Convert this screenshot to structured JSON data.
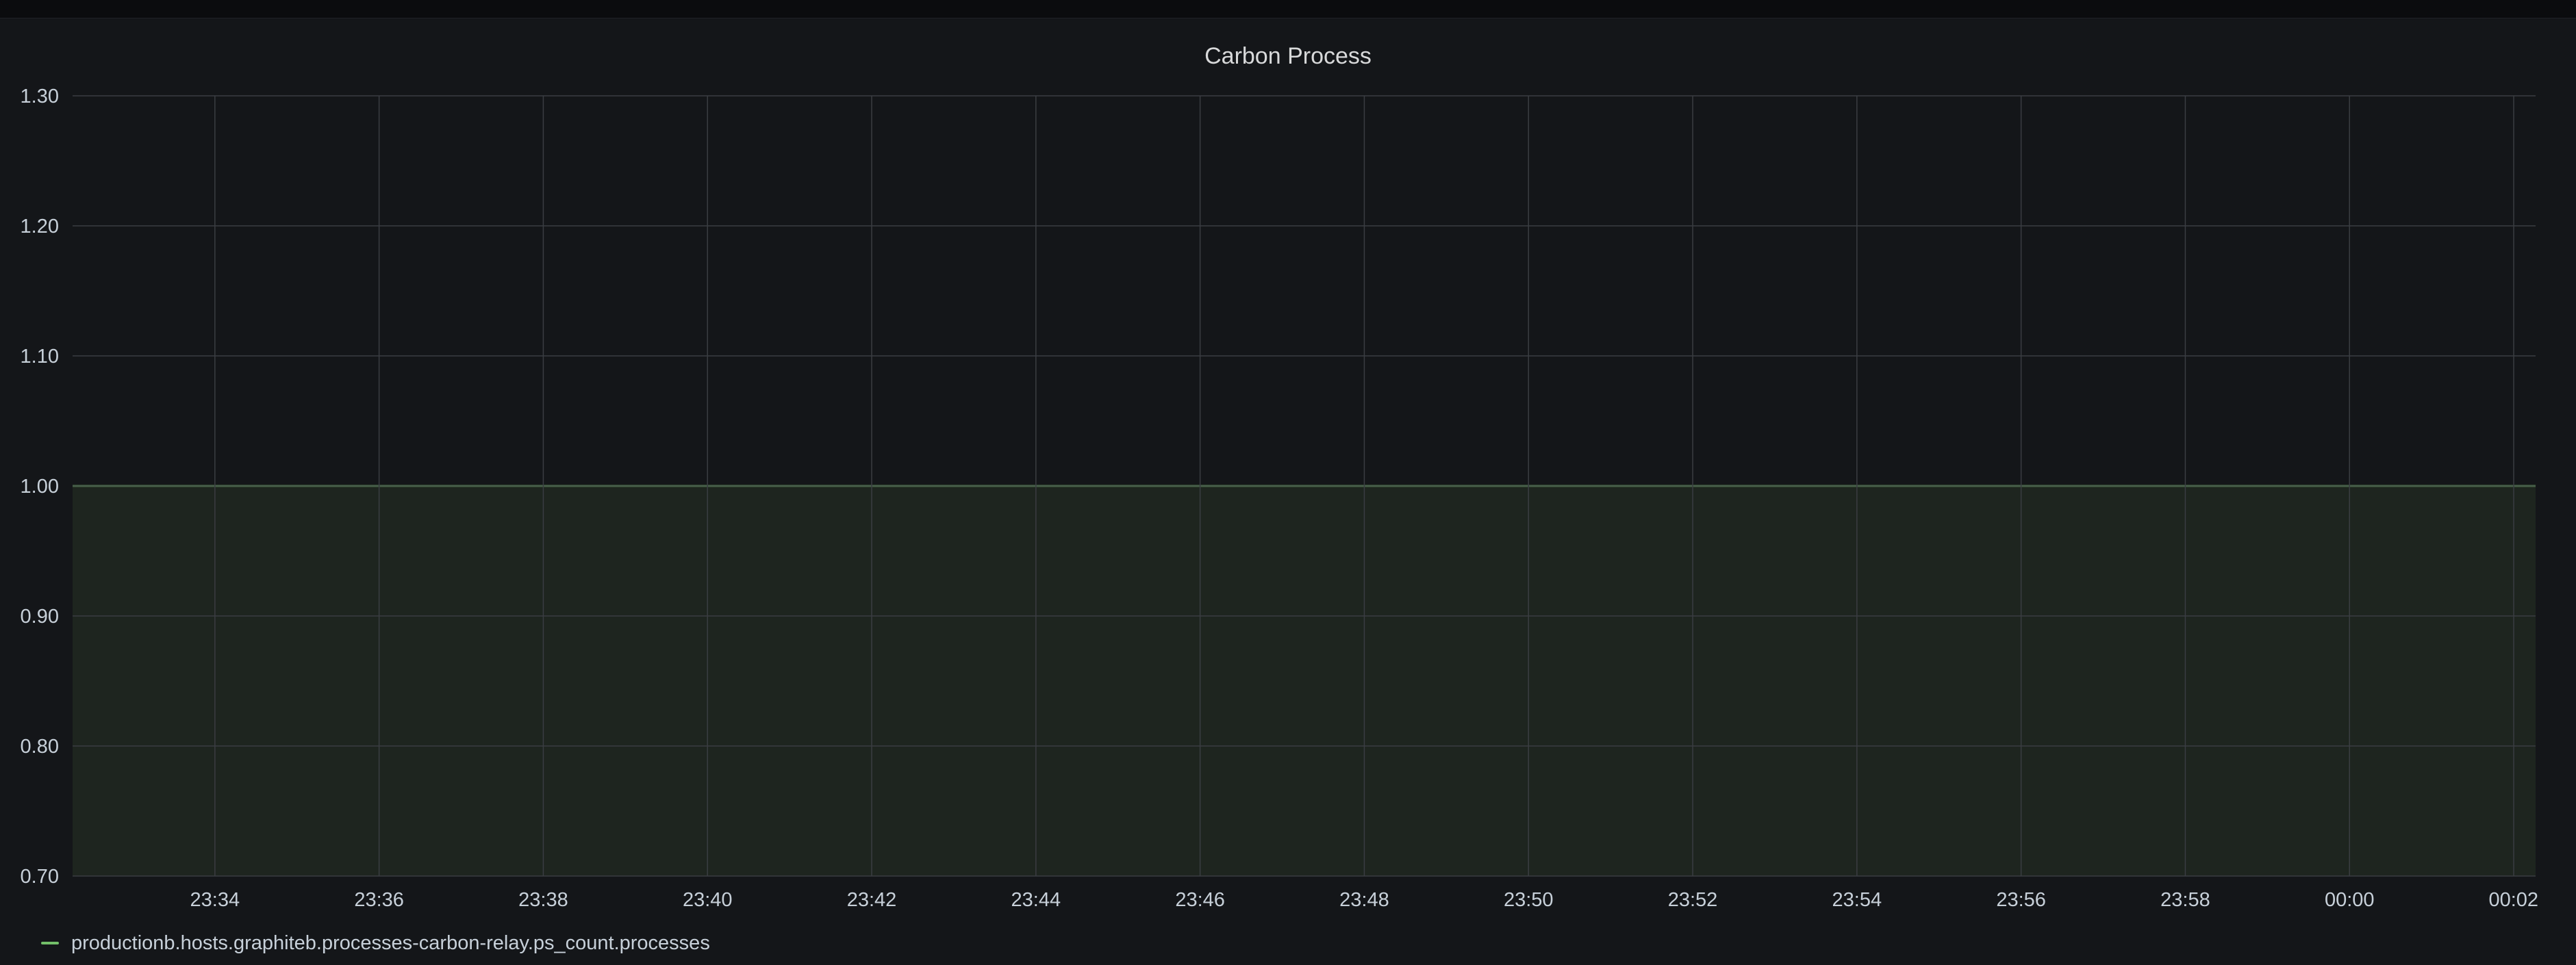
{
  "panel": {
    "title": "Carbon Process"
  },
  "colors": {
    "background": "#141619",
    "grid": "#3a3d42",
    "series_line": "#73bf69",
    "series_fill": "#1f2620"
  },
  "chart_data": {
    "type": "area",
    "title": "Carbon Process",
    "xlabel": "",
    "ylabel": "",
    "ylim": [
      0.7,
      1.3
    ],
    "yticks": [
      "0.70",
      "0.80",
      "0.90",
      "1.00",
      "1.10",
      "1.20",
      "1.30"
    ],
    "xlim": [
      "23:32:16",
      "00:02:16"
    ],
    "xticks": [
      "23:34",
      "23:36",
      "23:38",
      "23:40",
      "23:42",
      "23:44",
      "23:46",
      "23:48",
      "23:50",
      "23:52",
      "23:54",
      "23:56",
      "23:58",
      "00:00",
      "00:02"
    ],
    "grid": true,
    "legend_position": "bottom-left",
    "series": [
      {
        "name": "productionb.hosts.graphiteb.processes-carbon-relay.ps_count.processes",
        "x": [
          "23:32:16",
          "00:02:16"
        ],
        "values": [
          1.0,
          1.0
        ]
      }
    ]
  }
}
